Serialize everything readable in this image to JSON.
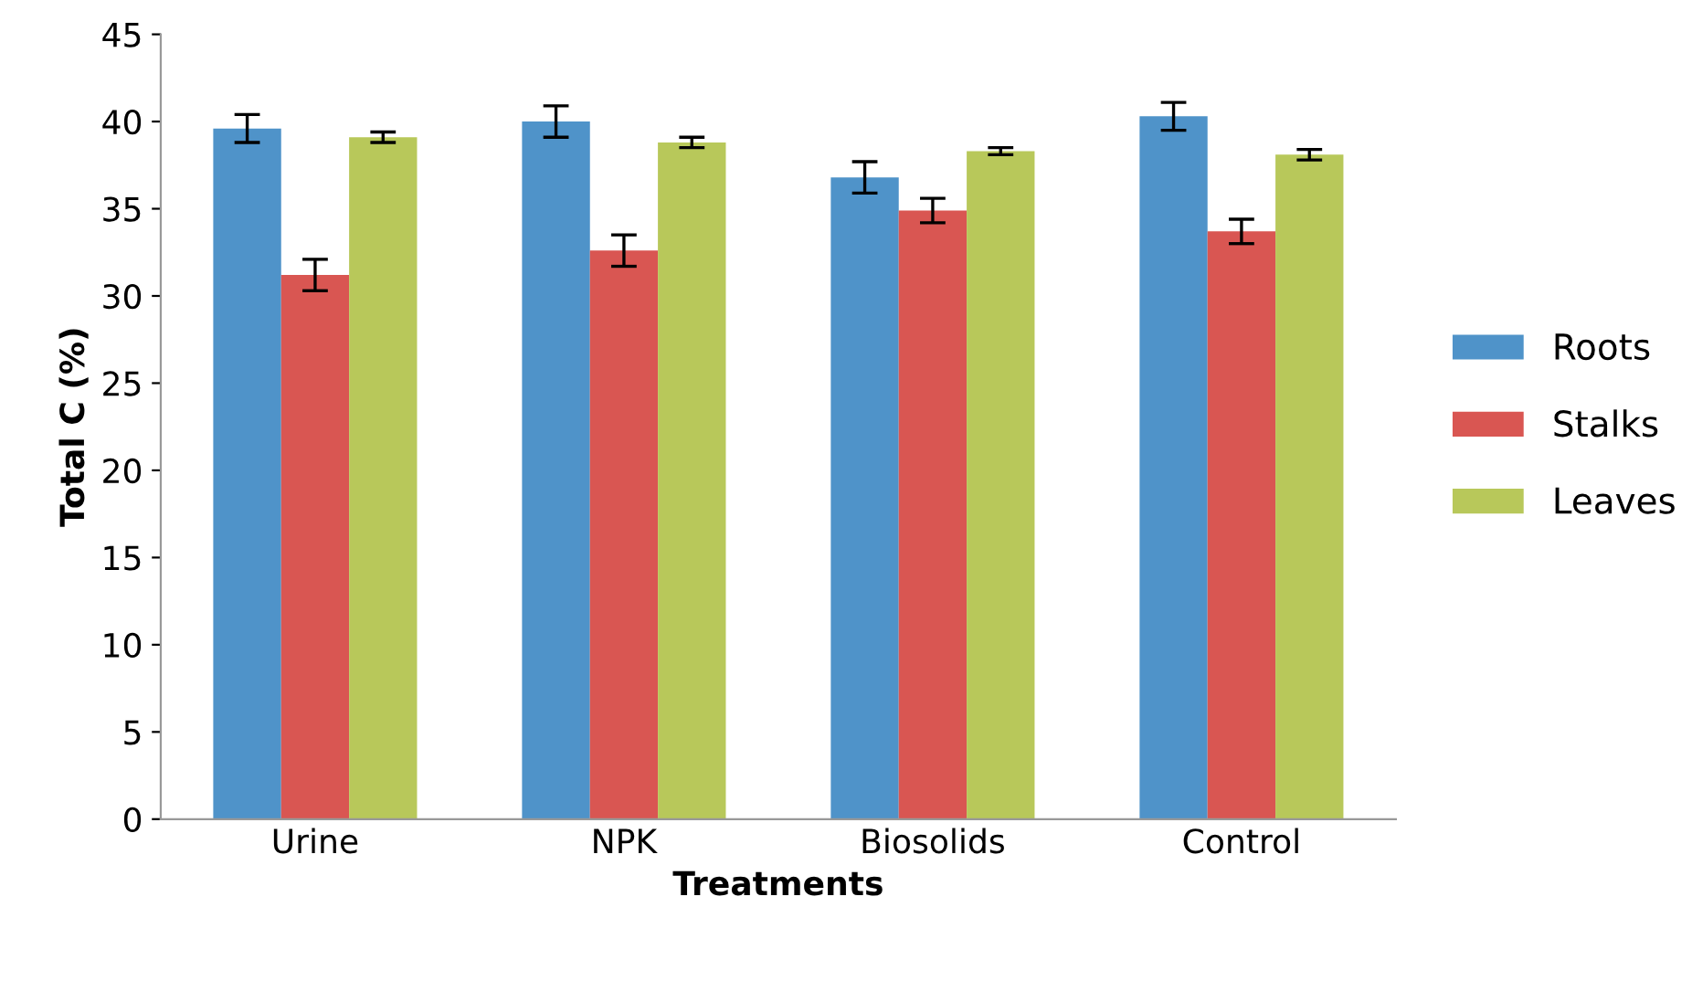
{
  "chart_data": {
    "type": "bar",
    "xlabel": "Treatments",
    "ylabel": "Total C (%)",
    "categories": [
      "Urine",
      "NPK",
      "Biosolids",
      "Control"
    ],
    "series": [
      {
        "name": "Roots",
        "color": "#4f93c9",
        "values": [
          39.6,
          40.0,
          36.8,
          40.3
        ],
        "errors": [
          0.8,
          0.9,
          0.9,
          0.8
        ]
      },
      {
        "name": "Stalks",
        "color": "#d95652",
        "values": [
          31.2,
          32.6,
          34.9,
          33.7
        ],
        "errors": [
          0.9,
          0.9,
          0.7,
          0.7
        ]
      },
      {
        "name": "Leaves",
        "color": "#b8c85a",
        "values": [
          39.1,
          38.8,
          38.3,
          38.1
        ],
        "errors": [
          0.3,
          0.3,
          0.2,
          0.3
        ]
      }
    ],
    "ylim": [
      0,
      45
    ],
    "yticks": [
      0,
      5,
      10,
      15,
      20,
      25,
      30,
      35,
      40,
      45
    ],
    "grid": false,
    "legend": "right"
  }
}
